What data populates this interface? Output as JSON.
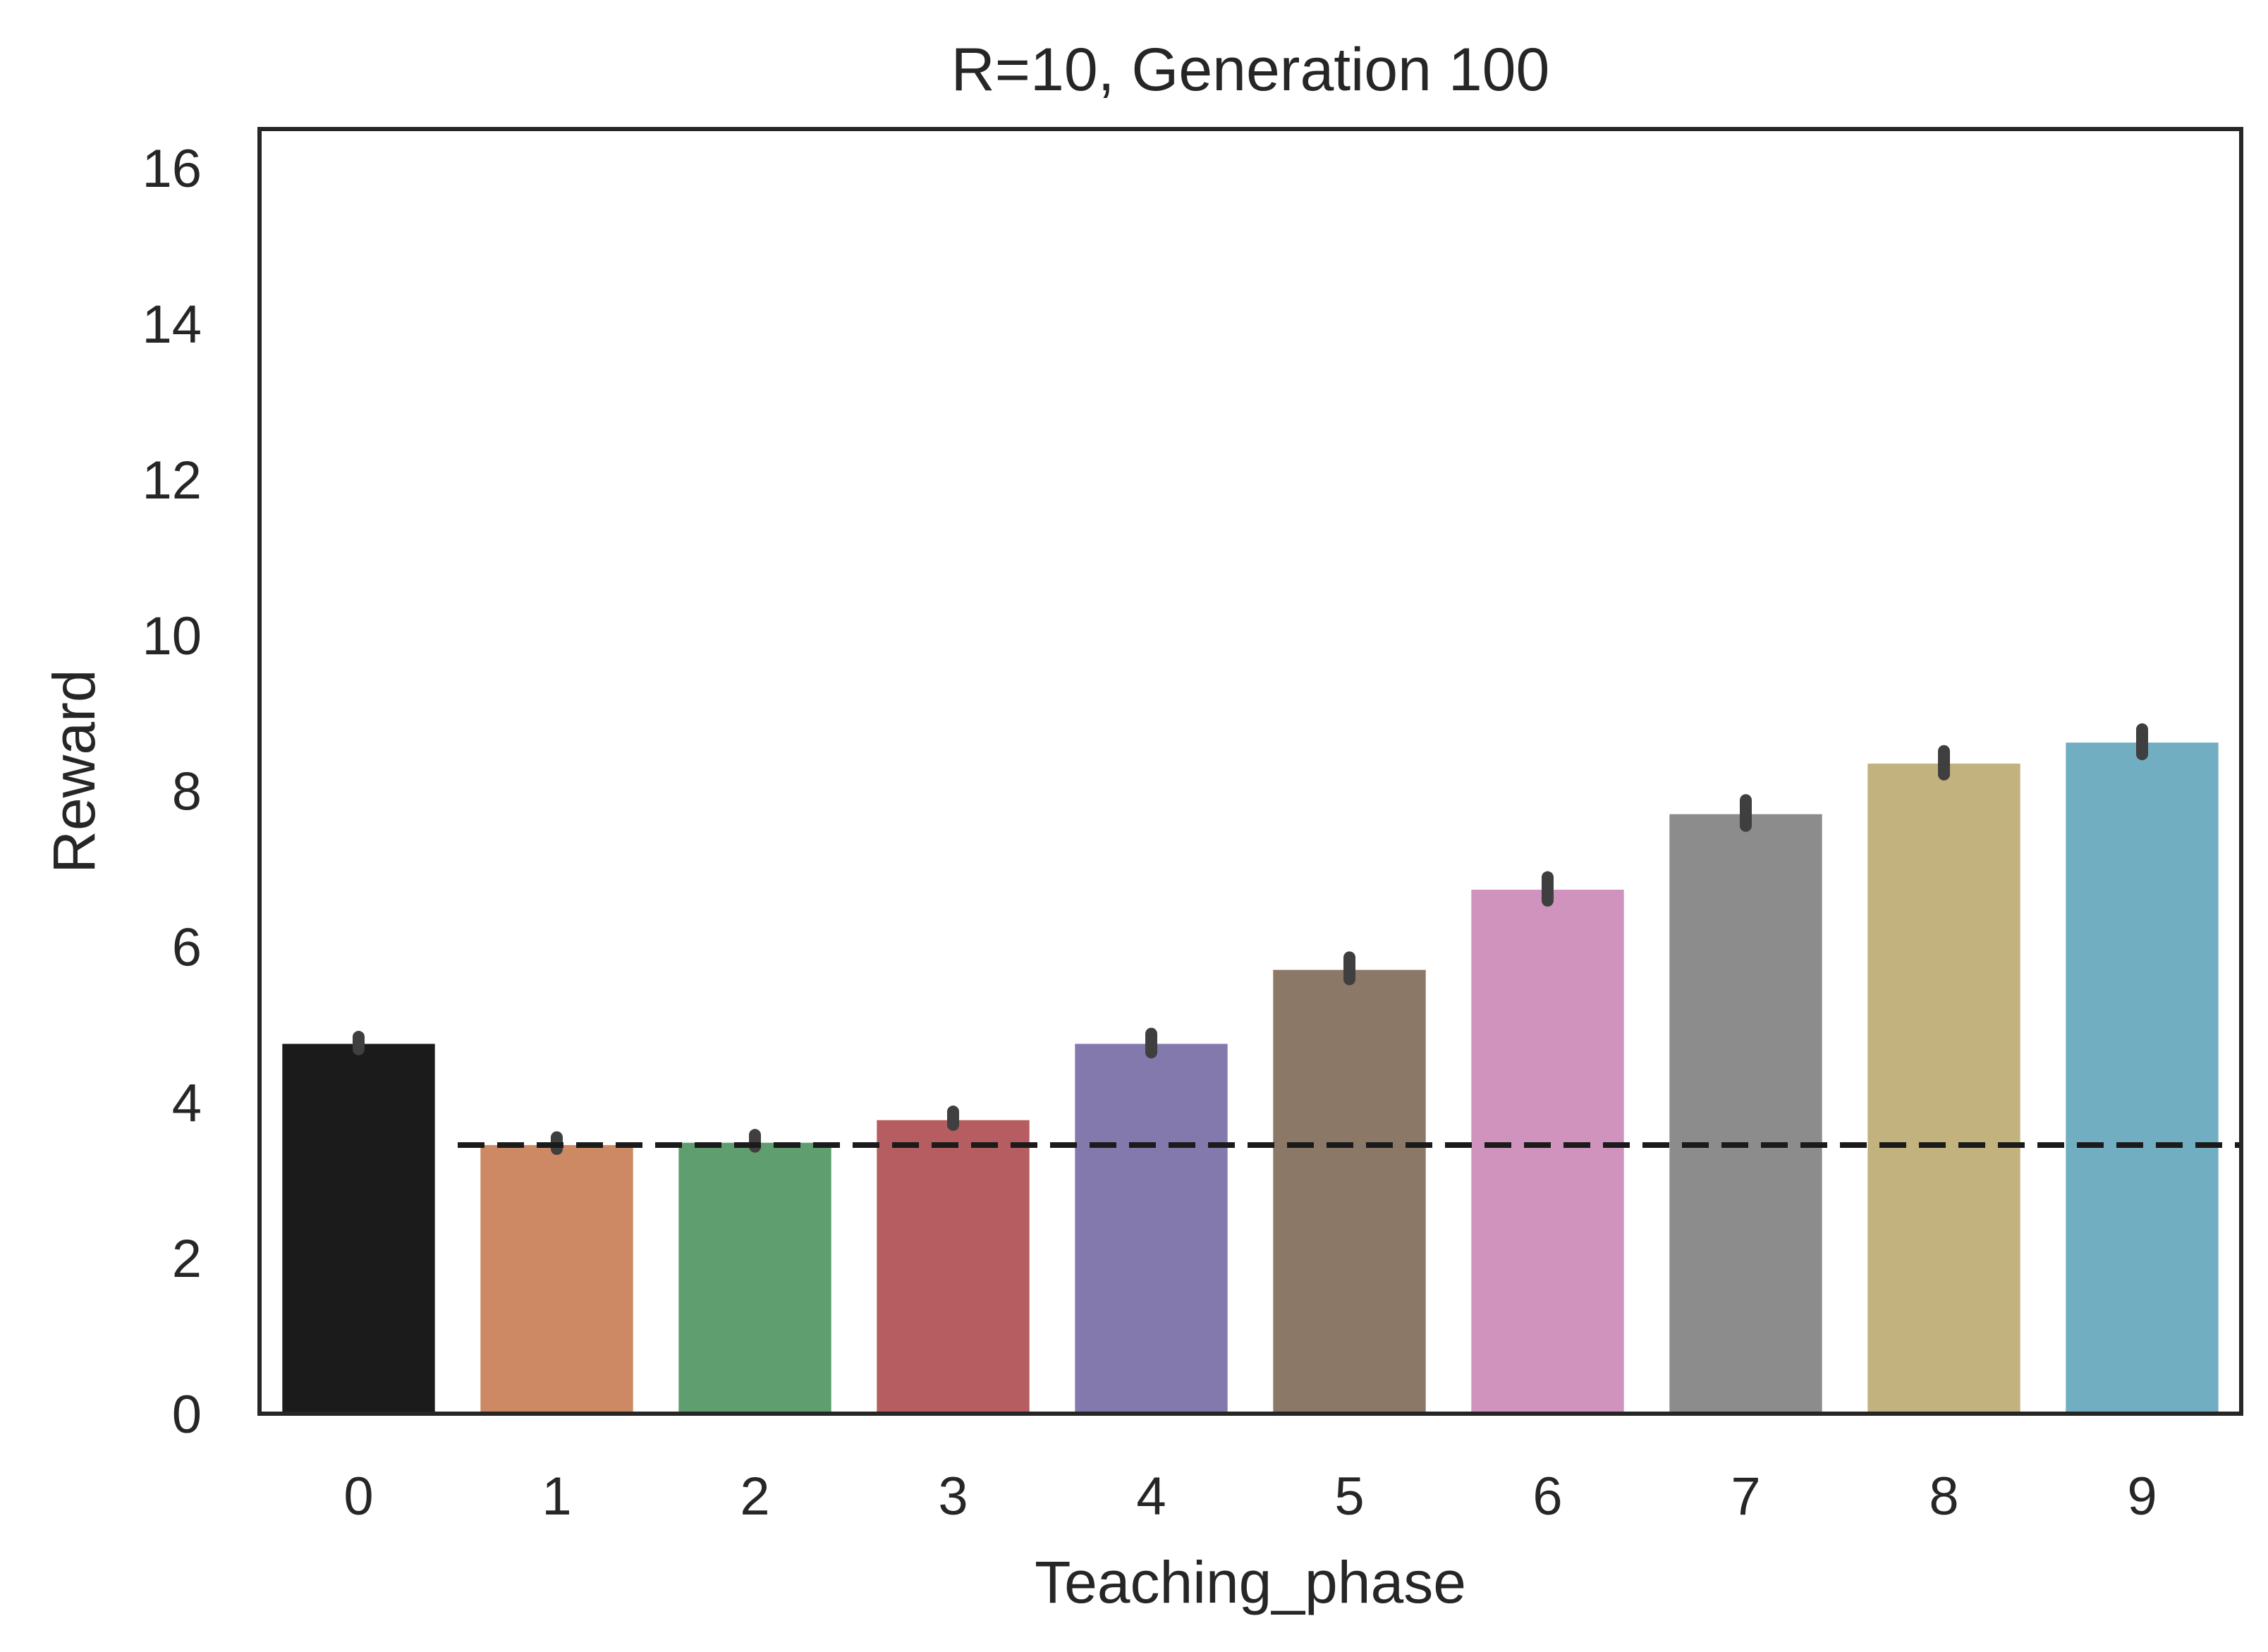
{
  "chart_data": {
    "type": "bar",
    "title": "R=10, Generation 100",
    "xlabel": "Teaching_phase",
    "ylabel": "Reward",
    "categories": [
      "0",
      "1",
      "2",
      "3",
      "4",
      "5",
      "6",
      "7",
      "8",
      "9"
    ],
    "values": [
      4.75,
      3.45,
      3.48,
      3.77,
      4.75,
      5.7,
      6.73,
      7.7,
      8.35,
      8.62
    ],
    "error_low": [
      4.68,
      3.4,
      3.43,
      3.71,
      4.64,
      5.58,
      6.59,
      7.55,
      8.21,
      8.47
    ],
    "error_high": [
      4.84,
      3.55,
      3.58,
      3.88,
      4.88,
      5.86,
      6.89,
      7.88,
      8.51,
      8.79
    ],
    "colors": [
      "#1b1b1b",
      "#cc8963",
      "#5f9e6e",
      "#b55d60",
      "#8479ac",
      "#8c7866",
      "#cf93bd",
      "#8c8c8c",
      "#c2b27d",
      "#72aec1"
    ],
    "error_color": "#3f3f3f",
    "reference_line": {
      "y": 3.45,
      "style": "dashed",
      "color": "#1b1b1b"
    },
    "ylim": [
      0,
      16.5
    ],
    "yticks": [
      0,
      2,
      4,
      6,
      8,
      10,
      12,
      14,
      16
    ],
    "grid": false,
    "legend": "none"
  }
}
